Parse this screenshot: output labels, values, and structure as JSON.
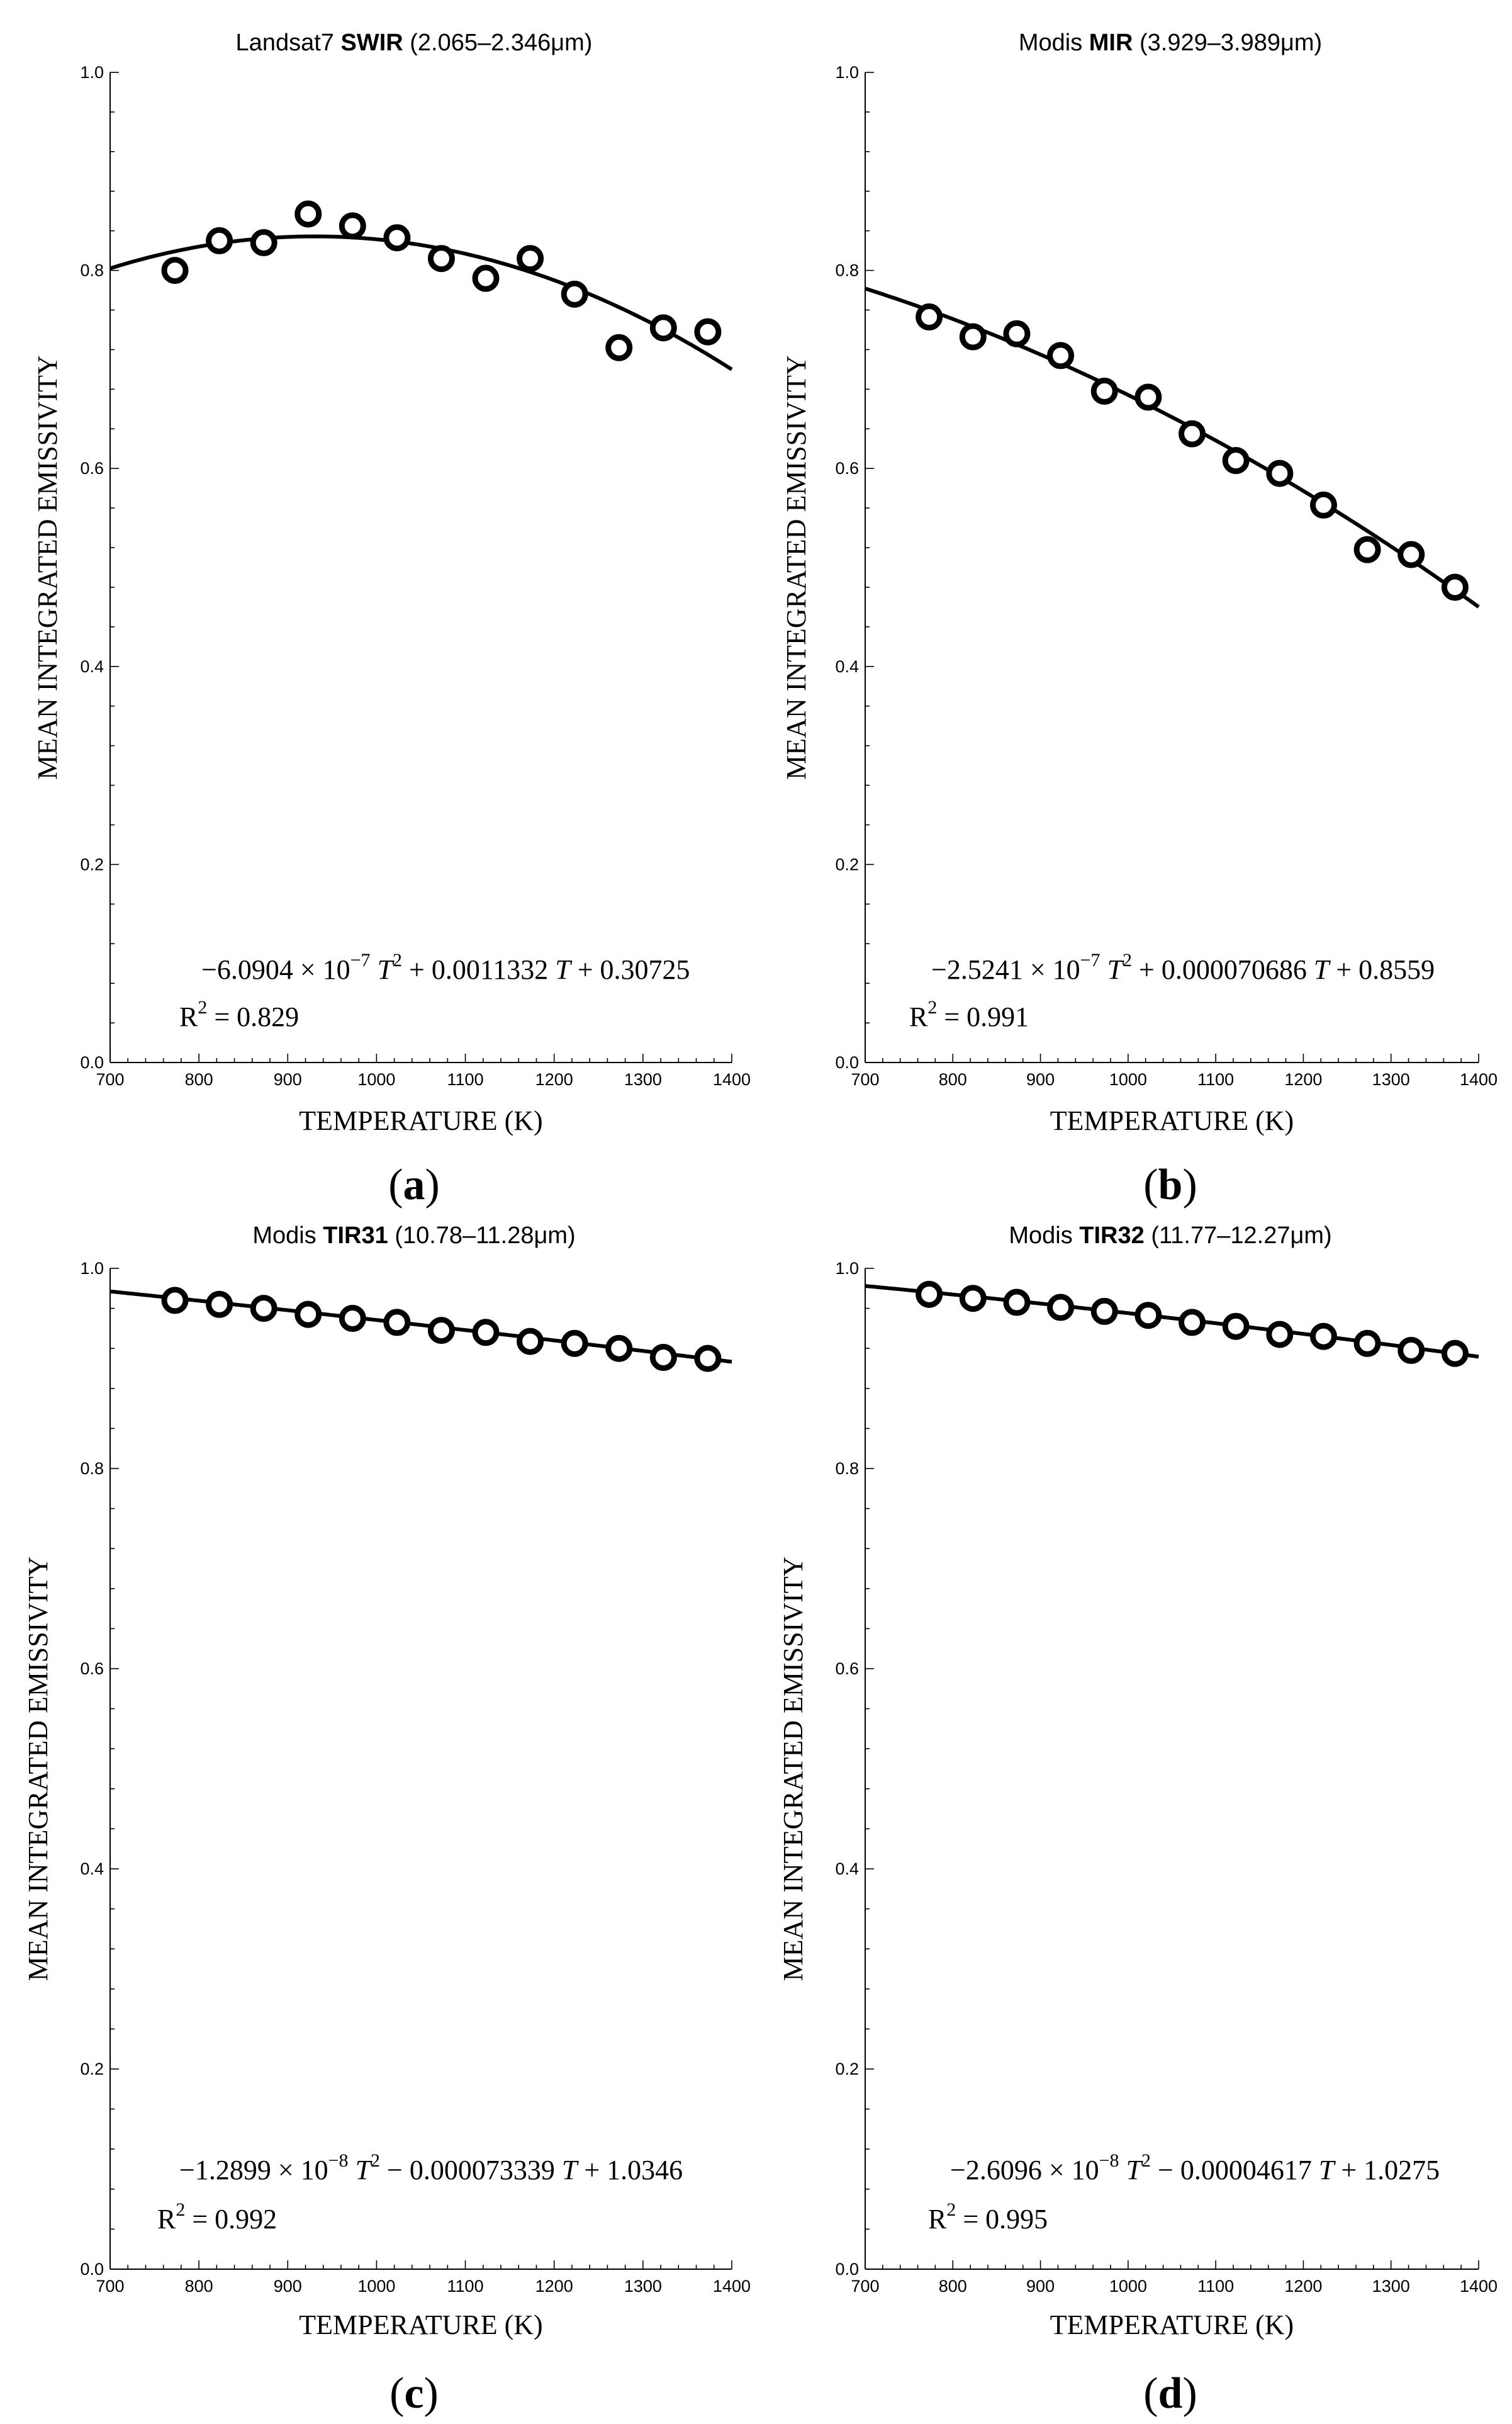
{
  "chart_data": [
    {
      "type": "scatter",
      "panel_label": "a",
      "title": {
        "prefix": "Landsat7",
        "bold": "SWIR",
        "suffix": "(2.065–2.346μm)"
      },
      "xlabel": "TEMPERATURE (K)",
      "ylabel": "MEAN INTEGRATED EMISSIVITY",
      "xlim": [
        700,
        1400
      ],
      "ylim": [
        0.0,
        1.0
      ],
      "xticks": [
        "700",
        "800",
        "900",
        "1000",
        "1100",
        "1200",
        "1300",
        "1400"
      ],
      "yticks": [
        "0.0",
        "0.2",
        "0.4",
        "0.6",
        "0.8",
        "1.0"
      ],
      "grid": false,
      "points": {
        "x": [
          773,
          823,
          873,
          923,
          973,
          1023,
          1073,
          1123,
          1173,
          1223,
          1273,
          1323,
          1373
        ],
        "y": [
          0.8,
          0.83,
          0.828,
          0.857,
          0.845,
          0.833,
          0.812,
          0.792,
          0.812,
          0.776,
          0.722,
          0.742,
          0.738
        ]
      },
      "fit": {
        "coefficients": [
          -6.0904e-07,
          0.0011332,
          0.30725
        ],
        "x_range": [
          700,
          1400
        ]
      },
      "equation": {
        "coef": "−6.0904 × 10",
        "exp": "−7",
        "rest": "+ 0.0011332",
        "tail": "+ 0.30725",
        "r2": "= 0.829"
      }
    },
    {
      "type": "scatter",
      "panel_label": "b",
      "title": {
        "prefix": "Modis",
        "bold": "MIR",
        "suffix": "(3.929–3.989μm)"
      },
      "xlabel": "TEMPERATURE (K)",
      "ylabel": "MEAN INTEGRATED EMISSIVITY",
      "xlim": [
        700,
        1400
      ],
      "ylim": [
        0.0,
        1.0
      ],
      "xticks": [
        "700",
        "800",
        "900",
        "1000",
        "1100",
        "1200",
        "1300",
        "1400"
      ],
      "yticks": [
        "0.0",
        "0.2",
        "0.4",
        "0.6",
        "0.8",
        "1.0"
      ],
      "grid": false,
      "points": {
        "x": [
          773,
          823,
          873,
          923,
          973,
          1023,
          1073,
          1123,
          1173,
          1223,
          1273,
          1323,
          1373
        ],
        "y": [
          0.753,
          0.733,
          0.736,
          0.714,
          0.678,
          0.672,
          0.635,
          0.608,
          0.595,
          0.563,
          0.518,
          0.513,
          0.48
        ]
      },
      "fit": {
        "coefficients": [
          -2.5241e-07,
          7.0686e-05,
          0.8559
        ],
        "x_range": [
          700,
          1400
        ]
      },
      "equation": {
        "coef": "−2.5241 × 10",
        "exp": "−7",
        "rest": "+ 0.000070686",
        "tail": "+ 0.8559",
        "r2": "= 0.991"
      }
    },
    {
      "type": "scatter",
      "panel_label": "c",
      "title": {
        "prefix": "Modis",
        "bold": "TIR31",
        "suffix": "(10.78–11.28μm)"
      },
      "xlabel": "TEMPERATURE (K)",
      "ylabel": "MEAN INTEGRATED EMISSIVITY",
      "xlim": [
        700,
        1400
      ],
      "ylim": [
        0.0,
        1.0
      ],
      "xticks": [
        "700",
        "800",
        "900",
        "1000",
        "1100",
        "1200",
        "1300",
        "1400"
      ],
      "yticks": [
        "0.0",
        "0.2",
        "0.4",
        "0.6",
        "0.8",
        "1.0"
      ],
      "grid": false,
      "points": {
        "x": [
          773,
          823,
          873,
          923,
          973,
          1023,
          1073,
          1123,
          1173,
          1223,
          1273,
          1323,
          1373
        ],
        "y": [
          0.968,
          0.964,
          0.96,
          0.954,
          0.95,
          0.946,
          0.938,
          0.936,
          0.927,
          0.925,
          0.92,
          0.911,
          0.91
        ]
      },
      "fit": {
        "coefficients": [
          -1.2899e-08,
          -7.3339e-05,
          1.0346
        ],
        "x_range": [
          700,
          1400
        ]
      },
      "equation": {
        "coef": "−1.2899 × 10",
        "exp": "−8",
        "rest": "− 0.000073339",
        "tail": "+ 1.0346",
        "r2": "= 0.992"
      }
    },
    {
      "type": "scatter",
      "panel_label": "d",
      "title": {
        "prefix": "Modis",
        "bold": "TIR32",
        "suffix": "(11.77–12.27μm)"
      },
      "xlabel": "TEMPERATURE (K)",
      "ylabel": "MEAN INTEGRATED EMISSIVITY",
      "xlim": [
        700,
        1400
      ],
      "ylim": [
        0.0,
        1.0
      ],
      "xticks": [
        "700",
        "800",
        "900",
        "1000",
        "1100",
        "1200",
        "1300",
        "1400"
      ],
      "yticks": [
        "0.0",
        "0.2",
        "0.4",
        "0.6",
        "0.8",
        "1.0"
      ],
      "grid": false,
      "points": {
        "x": [
          773,
          823,
          873,
          923,
          973,
          1023,
          1073,
          1123,
          1173,
          1223,
          1273,
          1323,
          1373
        ],
        "y": [
          0.974,
          0.97,
          0.966,
          0.961,
          0.957,
          0.953,
          0.946,
          0.942,
          0.934,
          0.932,
          0.925,
          0.918,
          0.915
        ]
      },
      "fit": {
        "coefficients": [
          -2.6096e-08,
          -4.617e-05,
          1.0275
        ],
        "x_range": [
          700,
          1400
        ]
      },
      "equation": {
        "coef": "−2.6096 × 10",
        "exp": "−8",
        "rest": "− 0.00004617",
        "tail": "+ 1.0275",
        "r2": "= 0.995"
      }
    }
  ]
}
